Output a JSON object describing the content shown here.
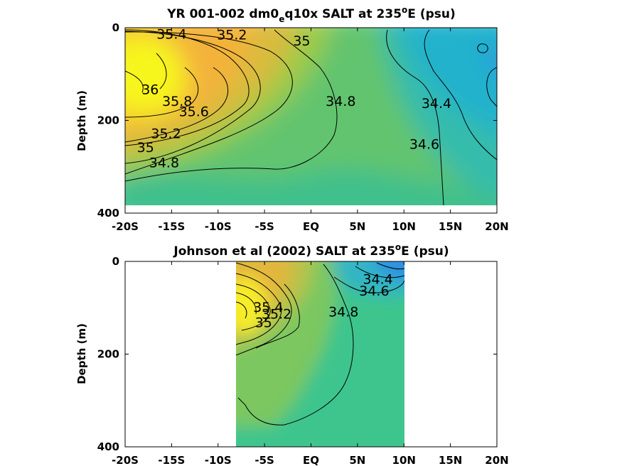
{
  "chart_data": [
    {
      "type": "heatmap",
      "title": {
        "main": "YR 001-002 dm0",
        "sub": "e",
        "mid": "q10x SALT at 235",
        "sup": "o",
        "end": "E (psu)"
      },
      "ylabel": "Depth (m)",
      "xlim": [
        -20,
        20
      ],
      "ylim": [
        0,
        400
      ],
      "y_reversed": true,
      "x_ticks": [
        -20,
        -15,
        -10,
        -5,
        0,
        5,
        10,
        15,
        20
      ],
      "x_tick_labels": [
        "-20S",
        "-15S",
        "-10S",
        "-5S",
        "EQ",
        "5N",
        "10N",
        "15N",
        "20N"
      ],
      "y_ticks": [
        0,
        200,
        400
      ],
      "y_tick_labels": [
        "0",
        "200",
        "400"
      ],
      "data_extent": {
        "x": [
          -20,
          20
        ],
        "depth": [
          0,
          380
        ]
      },
      "contour_levels": [
        34.4,
        34.6,
        34.8,
        35,
        35.2,
        35.4,
        35.6,
        35.8,
        36
      ],
      "contour_labels": [
        {
          "text": "35.4",
          "x": -15,
          "depth": 15
        },
        {
          "text": "35.2",
          "x": -8.5,
          "depth": 17
        },
        {
          "text": "35",
          "x": -1,
          "depth": 30
        },
        {
          "text": "36",
          "x": -17.3,
          "depth": 135
        },
        {
          "text": "35.8",
          "x": -14.4,
          "depth": 160
        },
        {
          "text": "35.6",
          "x": -12.6,
          "depth": 182
        },
        {
          "text": "35.2",
          "x": -15.6,
          "depth": 230
        },
        {
          "text": "35",
          "x": -17.8,
          "depth": 260
        },
        {
          "text": "34.8",
          "x": -15.8,
          "depth": 293
        },
        {
          "text": "34.8",
          "x": 3.2,
          "depth": 160
        },
        {
          "text": "34.4",
          "x": 13.5,
          "depth": 165
        },
        {
          "text": "34.6",
          "x": 12.2,
          "depth": 253
        }
      ]
    },
    {
      "type": "heatmap",
      "title": {
        "main": "Johnson et al (2002) SALT at 235",
        "sup": "o",
        "end": "E (psu)"
      },
      "ylabel": "Depth (m)",
      "xlim": [
        -20,
        20
      ],
      "ylim": [
        0,
        400
      ],
      "y_reversed": true,
      "x_ticks": [
        -20,
        -15,
        -10,
        -5,
        0,
        5,
        10,
        15,
        20
      ],
      "x_tick_labels": [
        "-20S",
        "-15S",
        "-10S",
        "-5S",
        "EQ",
        "5N",
        "10N",
        "15N",
        "20N"
      ],
      "y_ticks": [
        0,
        200,
        400
      ],
      "y_tick_labels": [
        "0",
        "200",
        "400"
      ],
      "data_extent": {
        "x": [
          -8,
          10
        ],
        "depth": [
          0,
          400
        ]
      },
      "contour_levels": [
        34.4,
        34.6,
        34.8,
        35,
        35.2,
        35.4
      ],
      "contour_labels": [
        {
          "text": "34.4",
          "x": 7.2,
          "depth": 40
        },
        {
          "text": "34.6",
          "x": 6.8,
          "depth": 65
        },
        {
          "text": "34.8",
          "x": 3.5,
          "depth": 110
        },
        {
          "text": "35.4",
          "x": -4.6,
          "depth": 100
        },
        {
          "text": "35.2",
          "x": -3.7,
          "depth": 115
        },
        {
          "text": "35",
          "x": -5.1,
          "depth": 133
        }
      ]
    }
  ],
  "colors": {
    "salty": "#f7f71e",
    "fresh": "#2f8fe6",
    "mid": "#4ec87c"
  }
}
